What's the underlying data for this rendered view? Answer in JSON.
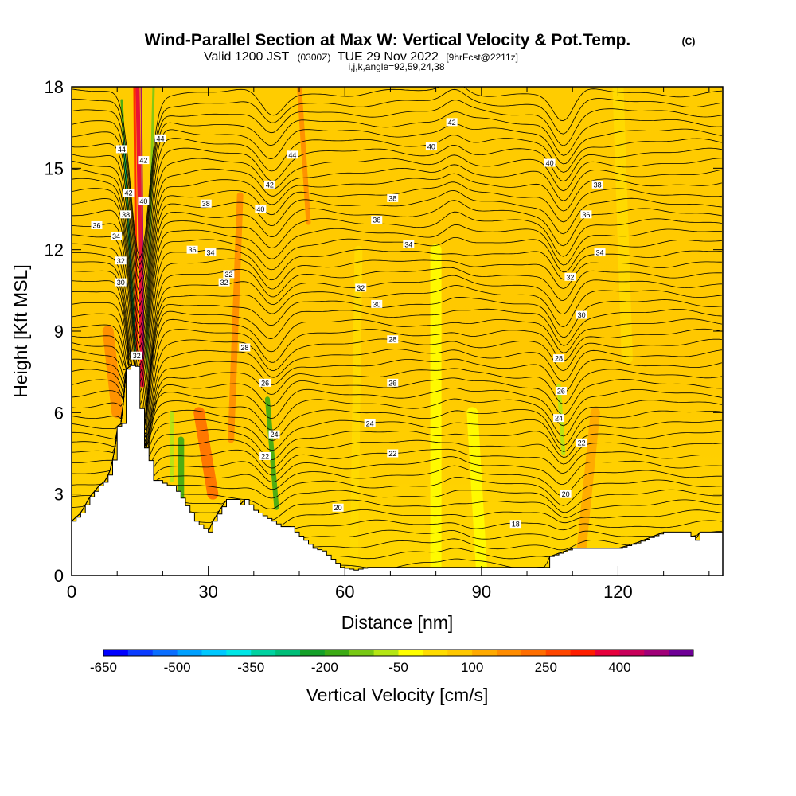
{
  "chart_data": {
    "type": "contour",
    "title": "Wind-Parallel Section at Max W: Vertical Velocity & Pot.Temp.",
    "copyright": "(C)",
    "subtitle_main": "Valid 1200 JST",
    "subtitle_utc": "(0300Z)",
    "subtitle_date": "TUE 29 Nov 2022",
    "subtitle_fcst": "[9hrFcst@2211z]",
    "subtitle_index": "i,j,k,angle=92,59,24,38",
    "xlabel": "Distance [nm]",
    "ylabel": "Height [Kft MSL]",
    "xlim": [
      0,
      143
    ],
    "ylim": [
      0,
      18
    ],
    "x_ticks": [
      "0",
      "30",
      "60",
      "90",
      "120"
    ],
    "x_tick_values": [
      0,
      30,
      60,
      90,
      120
    ],
    "y_ticks": [
      "0",
      "3",
      "6",
      "9",
      "12",
      "15",
      "18"
    ],
    "y_tick_values": [
      0,
      3,
      6,
      9,
      12,
      15,
      18
    ],
    "colorbar": {
      "label": "Vertical Velocity [cm/s]",
      "range": [
        -650,
        550
      ],
      "tick_labels": [
        "-650",
        "-500",
        "-350",
        "-200",
        "-50",
        "100",
        "250",
        "400"
      ],
      "tick_values": [
        -650,
        -500,
        -350,
        -200,
        -50,
        100,
        250,
        400
      ],
      "colors": [
        "#0000ff",
        "#0a3cff",
        "#0a6eff",
        "#00a0ff",
        "#00c8ff",
        "#00e6e6",
        "#00d2a0",
        "#00be78",
        "#14a028",
        "#3caa14",
        "#78c814",
        "#b4e614",
        "#ffff00",
        "#ffdc00",
        "#ffc800",
        "#ffaa00",
        "#ff8c00",
        "#ff6e00",
        "#ff4600",
        "#ff1e00",
        "#e6003c",
        "#c8005a",
        "#a00078",
        "#6e0096"
      ]
    },
    "theta_labels": [
      {
        "x": 11,
        "y": 15.7,
        "text": "44"
      },
      {
        "x": 19.5,
        "y": 16.1,
        "text": "44"
      },
      {
        "x": 15.8,
        "y": 15.3,
        "text": "42"
      },
      {
        "x": 12.5,
        "y": 14.1,
        "text": "42"
      },
      {
        "x": 15.8,
        "y": 13.8,
        "text": "40"
      },
      {
        "x": 11.9,
        "y": 13.3,
        "text": "38"
      },
      {
        "x": 5.5,
        "y": 12.9,
        "text": "36"
      },
      {
        "x": 9.8,
        "y": 12.5,
        "text": "34"
      },
      {
        "x": 10.8,
        "y": 11.6,
        "text": "32"
      },
      {
        "x": 10.8,
        "y": 10.8,
        "text": "30"
      },
      {
        "x": 14.3,
        "y": 8.1,
        "text": "32"
      },
      {
        "x": 29.5,
        "y": 13.7,
        "text": "38"
      },
      {
        "x": 26.5,
        "y": 12.0,
        "text": "36"
      },
      {
        "x": 30.5,
        "y": 11.9,
        "text": "34"
      },
      {
        "x": 33.5,
        "y": 10.8,
        "text": "32"
      },
      {
        "x": 34.5,
        "y": 11.1,
        "text": "32"
      },
      {
        "x": 48.5,
        "y": 15.5,
        "text": "44"
      },
      {
        "x": 43.5,
        "y": 14.4,
        "text": "42"
      },
      {
        "x": 41.5,
        "y": 13.5,
        "text": "40"
      },
      {
        "x": 38,
        "y": 8.4,
        "text": "28"
      },
      {
        "x": 42.5,
        "y": 7.1,
        "text": "26"
      },
      {
        "x": 44.5,
        "y": 5.2,
        "text": "24"
      },
      {
        "x": 42.5,
        "y": 4.4,
        "text": "22"
      },
      {
        "x": 58.5,
        "y": 2.5,
        "text": "20"
      },
      {
        "x": 83.5,
        "y": 16.7,
        "text": "42"
      },
      {
        "x": 79,
        "y": 15.8,
        "text": "40"
      },
      {
        "x": 105,
        "y": 15.2,
        "text": "40"
      },
      {
        "x": 70.5,
        "y": 13.9,
        "text": "38"
      },
      {
        "x": 67,
        "y": 13.1,
        "text": "36"
      },
      {
        "x": 74,
        "y": 12.2,
        "text": "34"
      },
      {
        "x": 63.5,
        "y": 10.6,
        "text": "32"
      },
      {
        "x": 67,
        "y": 10.0,
        "text": "30"
      },
      {
        "x": 70.5,
        "y": 8.7,
        "text": "28"
      },
      {
        "x": 70.5,
        "y": 7.1,
        "text": "26"
      },
      {
        "x": 65.5,
        "y": 5.6,
        "text": "24"
      },
      {
        "x": 70.5,
        "y": 4.5,
        "text": "22"
      },
      {
        "x": 97.5,
        "y": 1.9,
        "text": "18"
      },
      {
        "x": 115.5,
        "y": 14.4,
        "text": "38"
      },
      {
        "x": 113,
        "y": 13.3,
        "text": "36"
      },
      {
        "x": 116,
        "y": 11.9,
        "text": "34"
      },
      {
        "x": 109.5,
        "y": 11.0,
        "text": "32"
      },
      {
        "x": 112,
        "y": 9.6,
        "text": "30"
      },
      {
        "x": 107,
        "y": 8.0,
        "text": "28"
      },
      {
        "x": 107.5,
        "y": 6.8,
        "text": "26"
      },
      {
        "x": 107,
        "y": 5.8,
        "text": "24"
      },
      {
        "x": 112,
        "y": 4.9,
        "text": "22"
      },
      {
        "x": 108.5,
        "y": 3.0,
        "text": "20"
      }
    ],
    "terrain": [
      [
        0,
        2.0
      ],
      [
        2,
        2.3
      ],
      [
        4,
        2.9
      ],
      [
        6,
        3.3
      ],
      [
        7.5,
        3.5
      ],
      [
        8.5,
        3.9
      ],
      [
        9.5,
        4.6
      ],
      [
        10,
        5.5
      ],
      [
        11,
        5.6
      ],
      [
        12,
        7.6
      ],
      [
        13.5,
        7.8
      ],
      [
        14,
        7.7
      ],
      [
        14.5,
        6.8
      ],
      [
        15.5,
        5.5
      ],
      [
        16,
        4.7
      ],
      [
        17.5,
        4.0
      ],
      [
        18,
        3.5
      ],
      [
        19.5,
        3.5
      ],
      [
        20.5,
        3.3
      ],
      [
        22,
        3.3
      ],
      [
        23.5,
        3.0
      ],
      [
        24.5,
        2.7
      ],
      [
        26,
        2.3
      ],
      [
        27,
        2.0
      ],
      [
        30,
        1.6
      ],
      [
        31,
        2.0
      ],
      [
        32.5,
        2.4
      ],
      [
        34,
        2.8
      ],
      [
        36,
        2.8
      ],
      [
        37,
        2.6
      ],
      [
        38,
        2.8
      ],
      [
        40,
        2.4
      ],
      [
        42,
        2.2
      ],
      [
        44,
        2.0
      ],
      [
        46,
        1.8
      ],
      [
        48,
        1.8
      ],
      [
        49,
        1.6
      ],
      [
        51,
        1.3
      ],
      [
        53,
        1.0
      ],
      [
        55,
        0.9
      ],
      [
        57,
        0.6
      ],
      [
        59,
        0.3
      ],
      [
        62,
        0.2
      ],
      [
        65,
        0.3
      ],
      [
        70,
        0.3
      ],
      [
        75,
        0.3
      ],
      [
        80,
        0.3
      ],
      [
        85,
        0.3
      ],
      [
        90,
        0.3
      ],
      [
        95,
        0.3
      ],
      [
        100,
        0.3
      ],
      [
        104,
        0.3
      ],
      [
        105,
        0.7
      ],
      [
        110,
        1.0
      ],
      [
        115,
        1.0
      ],
      [
        120,
        1.0
      ],
      [
        124,
        1.2
      ],
      [
        127,
        1.4
      ],
      [
        130,
        1.6
      ],
      [
        133,
        1.6
      ],
      [
        135,
        1.6
      ],
      [
        137,
        1.3
      ],
      [
        138,
        1.6
      ],
      [
        143,
        1.6
      ]
    ]
  }
}
